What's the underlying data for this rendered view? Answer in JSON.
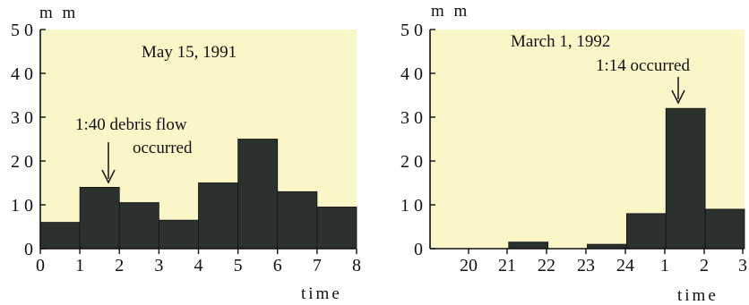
{
  "chart_data": [
    {
      "type": "bar",
      "title": "May 15, 1991",
      "ylabel": "m m",
      "xlabel": "time",
      "ylim": [
        0,
        50
      ],
      "yticks": [
        0,
        10,
        20,
        30,
        40,
        50
      ],
      "yticklabels": [
        "0",
        "1 0",
        "2 0",
        "3 0",
        "4 0",
        "5 0"
      ],
      "xticklabels": [
        "0",
        "1",
        "2",
        "3",
        "4",
        "5",
        "6",
        "7",
        "8"
      ],
      "categories": [
        "0-1",
        "1-2",
        "2-3",
        "3-4",
        "4-5",
        "5-6",
        "6-7",
        "7-8"
      ],
      "values": [
        6,
        14,
        10.5,
        6.5,
        15,
        25,
        13,
        9.5
      ],
      "annotation": {
        "lines": [
          "1:40  debris flow",
          "occurred"
        ],
        "target_bar": 1
      },
      "background": "#fbf6c8",
      "bar_color": "#2b312c"
    },
    {
      "type": "bar",
      "title": "March 1, 1992",
      "ylabel": "m m",
      "xlabel": "time",
      "ylim": [
        0,
        50
      ],
      "yticks": [
        0,
        10,
        20,
        30,
        40,
        50
      ],
      "yticklabels": [
        "0",
        "1 0",
        "2 0",
        "3 0",
        "4 0",
        "5 0"
      ],
      "xticklabels": [
        "20",
        "21",
        "22",
        "23",
        "24",
        "1",
        "2",
        "3"
      ],
      "categories": [
        "19-20",
        "20-21",
        "21-22",
        "22-23",
        "23-24",
        "24-1",
        "1-2",
        "2-3"
      ],
      "values": [
        0,
        0,
        1.5,
        0,
        1,
        8,
        32,
        9
      ],
      "annotation": {
        "lines": [
          "1:14   occurred"
        ],
        "target_bar": 6
      },
      "background": "#fbf6c8",
      "bar_color": "#2b312c"
    }
  ]
}
